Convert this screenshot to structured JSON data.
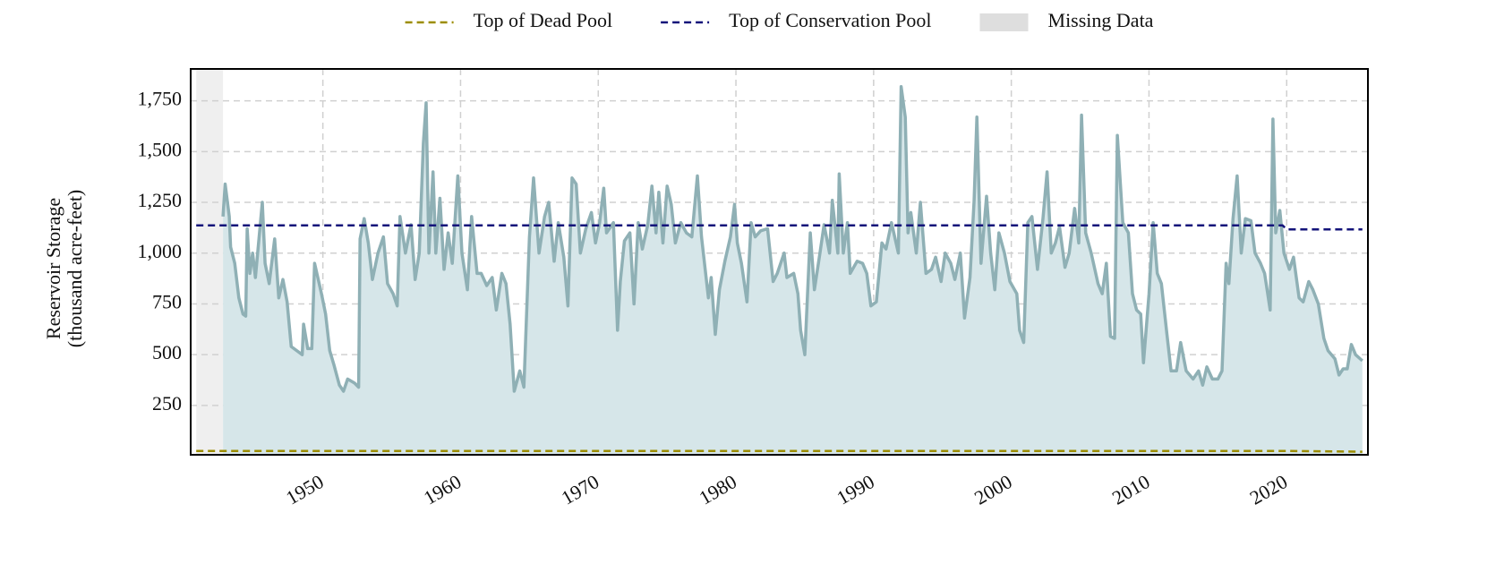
{
  "chart_data": {
    "type": "line",
    "ylabel": [
      "Reservoir Storage",
      "(thousand acre-feet)"
    ],
    "xlim": [
      1940.4,
      2025.9
    ],
    "ylim": [
      7,
      1907
    ],
    "xticks": [
      1950,
      1960,
      1970,
      1980,
      1990,
      2000,
      2010,
      2020
    ],
    "yticks": [
      250,
      500,
      750,
      {
        "value": 1000,
        "label": "1,000"
      },
      {
        "value": 1250,
        "label": "1,250"
      },
      {
        "value": 1500,
        "label": "1,500"
      },
      {
        "value": 1750,
        "label": "1,750"
      }
    ],
    "grid": true,
    "legend": "top",
    "color": "#8fb0b5",
    "area_color": "#d6e6e9",
    "x": [
      1942.75,
      1942.9,
      1943.2,
      1943.3,
      1943.6,
      1943.9,
      1944.2,
      1944.4,
      1944.5,
      1944.7,
      1944.9,
      1945.1,
      1945.6,
      1945.8,
      1946.1,
      1946.5,
      1946.8,
      1947.1,
      1947.4,
      1947.7,
      1948.1,
      1948.5,
      1948.6,
      1948.9,
      1949.2,
      1949.4,
      1949.9,
      1950.2,
      1950.5,
      1950.8,
      1951.2,
      1951.5,
      1951.8,
      1952.3,
      1952.6,
      1952.7,
      1953.0,
      1953.3,
      1953.6,
      1954.0,
      1954.4,
      1954.7,
      1955.1,
      1955.4,
      1955.6,
      1956.0,
      1956.4,
      1956.7,
      1957.0,
      1957.3,
      1957.5,
      1957.7,
      1958.0,
      1958.2,
      1958.5,
      1958.8,
      1959.1,
      1959.4,
      1959.8,
      1960.1,
      1960.5,
      1960.8,
      1961.2,
      1961.5,
      1961.9,
      1962.3,
      1962.6,
      1963.0,
      1963.3,
      1963.6,
      1963.9,
      1964.3,
      1964.6,
      1965.0,
      1965.3,
      1965.7,
      1966.1,
      1966.4,
      1966.8,
      1967.1,
      1967.5,
      1967.8,
      1968.1,
      1968.4,
      1968.7,
      1969.1,
      1969.5,
      1969.8,
      1970.1,
      1970.4,
      1970.6,
      1971.1,
      1971.4,
      1971.6,
      1971.9,
      1972.3,
      1972.6,
      1972.9,
      1973.2,
      1973.6,
      1973.9,
      1974.2,
      1974.4,
      1974.7,
      1975.0,
      1975.3,
      1975.6,
      1976.0,
      1976.4,
      1976.8,
      1977.2,
      1977.5,
      1978.0,
      1978.2,
      1978.5,
      1978.8,
      1979.2,
      1979.6,
      1979.9,
      1980.1,
      1980.4,
      1980.8,
      1981.1,
      1981.4,
      1981.8,
      1982.3,
      1982.7,
      1983.0,
      1983.5,
      1983.7,
      1984.2,
      1984.5,
      1984.7,
      1985.0,
      1985.4,
      1985.7,
      1986.1,
      1986.4,
      1986.8,
      1987.0,
      1987.4,
      1987.5,
      1987.8,
      1988.1,
      1988.3,
      1988.8,
      1989.2,
      1989.5,
      1989.8,
      1990.2,
      1990.6,
      1990.9,
      1991.3,
      1991.8,
      1992.0,
      1992.3,
      1992.5,
      1992.7,
      1993.1,
      1993.4,
      1993.8,
      1994.2,
      1994.5,
      1994.9,
      1995.2,
      1995.6,
      1995.9,
      1996.3,
      1996.6,
      1997.0,
      1997.3,
      1997.5,
      1997.8,
      1998.2,
      1998.5,
      1998.8,
      1999.1,
      1999.5,
      1999.9,
      2000.4,
      2000.6,
      2000.9,
      2001.2,
      2001.5,
      2001.9,
      2002.3,
      2002.6,
      2002.9,
      2003.2,
      2003.5,
      2003.9,
      2004.2,
      2004.6,
      2004.9,
      2005.1,
      2005.4,
      2005.8,
      2006.3,
      2006.6,
      2006.9,
      2007.2,
      2007.5,
      2007.7,
      2008.1,
      2008.5,
      2008.8,
      2009.1,
      2009.4,
      2009.6,
      2010.0,
      2010.3,
      2010.6,
      2010.9,
      2011.3,
      2011.6,
      2012.0,
      2012.3,
      2012.7,
      2013.2,
      2013.6,
      2013.9,
      2014.2,
      2014.6,
      2015.0,
      2015.3,
      2015.6,
      2015.8,
      2016.1,
      2016.4,
      2016.7,
      2017.0,
      2017.4,
      2017.7,
      2018.1,
      2018.4,
      2018.8,
      2019.0,
      2019.2,
      2019.5,
      2019.8,
      2020.2,
      2020.5,
      2020.9,
      2021.2,
      2021.6,
      2021.9,
      2022.3,
      2022.7,
      2023.0,
      2023.5,
      2023.8,
      2024.1,
      2024.4,
      2024.7,
      2025.0,
      2025.5
    ],
    "values": [
      1180,
      1340,
      1180,
      1030,
      950,
      780,
      700,
      690,
      1120,
      900,
      1000,
      880,
      1250,
      950,
      850,
      1070,
      780,
      870,
      760,
      540,
      520,
      500,
      650,
      530,
      530,
      950,
      800,
      700,
      520,
      450,
      350,
      320,
      380,
      360,
      340,
      1070,
      1170,
      1050,
      870,
      1000,
      1080,
      850,
      800,
      740,
      1180,
      1000,
      1140,
      870,
      1000,
      1540,
      1740,
      1000,
      1400,
      1000,
      1270,
      920,
      1100,
      950,
      1380,
      1000,
      820,
      1180,
      900,
      900,
      840,
      880,
      720,
      900,
      850,
      650,
      320,
      420,
      340,
      1080,
      1370,
      1000,
      1180,
      1250,
      960,
      1150,
      980,
      740,
      1370,
      1340,
      1000,
      1120,
      1200,
      1050,
      1150,
      1320,
      1100,
      1150,
      620,
      860,
      1060,
      1100,
      750,
      1150,
      1020,
      1140,
      1330,
      1100,
      1300,
      1050,
      1330,
      1240,
      1050,
      1150,
      1100,
      1080,
      1380,
      1080,
      780,
      880,
      600,
      820,
      960,
      1080,
      1240,
      1050,
      950,
      760,
      1150,
      1080,
      1110,
      1120,
      860,
      900,
      1000,
      880,
      900,
      800,
      620,
      500,
      1100,
      820,
      1000,
      1140,
      1000,
      1260,
      1000,
      1390,
      1000,
      1150,
      900,
      960,
      950,
      900,
      740,
      760,
      1050,
      1020,
      1150,
      1000,
      1820,
      1670,
      1100,
      1200,
      1000,
      1250,
      900,
      920,
      980,
      860,
      1000,
      950,
      870,
      1000,
      680,
      880,
      1260,
      1670,
      950,
      1280,
      1000,
      820,
      1100,
      1000,
      860,
      800,
      620,
      560,
      1150,
      1180,
      920,
      1170,
      1400,
      1000,
      1050,
      1130,
      930,
      1000,
      1220,
      1050,
      1680,
      1100,
      1000,
      850,
      800,
      950,
      590,
      580,
      1580,
      1150,
      1100,
      800,
      720,
      700,
      460,
      800,
      1150,
      900,
      850,
      600,
      420,
      420,
      560,
      420,
      380,
      420,
      350,
      440,
      380,
      380,
      420,
      950,
      850,
      1170,
      1380,
      1000,
      1170,
      1160,
      1000,
      950,
      900,
      720,
      1660,
      1100,
      1210,
      1000,
      920,
      980,
      780,
      760,
      860,
      820,
      750,
      580,
      520,
      480,
      400,
      430,
      430,
      550,
      500,
      470
    ],
    "series": [
      {
        "name": "Top of Dead Pool",
        "color": "#9c8d00",
        "x": [
          1940.8,
          2020.0,
          2025.5
        ],
        "values": [
          26,
          26,
          22
        ]
      },
      {
        "name": "Top of Conservation Pool",
        "color": "#14147a",
        "x": [
          1940.8,
          2019.7,
          2020.0,
          2025.5
        ],
        "values": [
          1137,
          1137,
          1117,
          1117
        ]
      }
    ],
    "shaded_regions": [
      {
        "name": "Missing Data",
        "color": "#efefef",
        "x": [
          1940.8,
          1942.75
        ]
      }
    ]
  }
}
